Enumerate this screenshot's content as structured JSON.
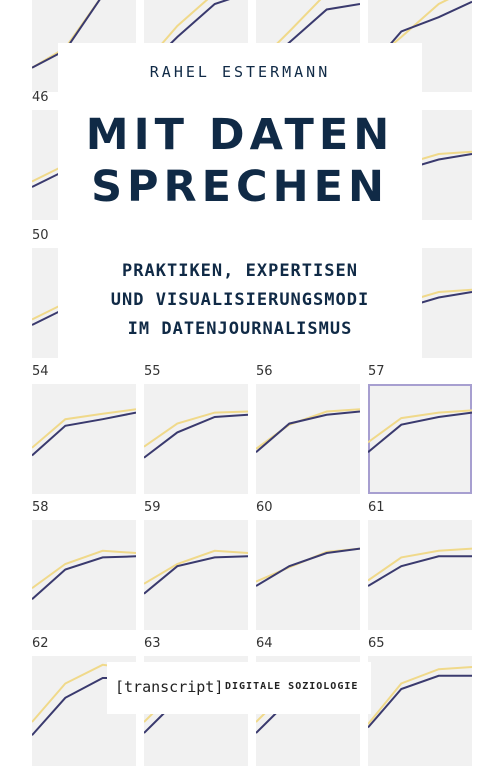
{
  "book": {
    "author": "RAHEL ESTERMANN",
    "title_line1": "MIT DATEN",
    "title_line2": "SPRECHEN",
    "subtitle_line1": "PRAKTIKEN, EXPERTISEN",
    "subtitle_line2": "UND VISUALISIERUNGSMODI",
    "subtitle_line3": "IM DATENJOURNALISMUS",
    "publisher": "[transcript]",
    "series": "DIGITALE SOZIOLOGIE"
  },
  "colors": {
    "panel_bg": "#f1f1f1",
    "line_dark": "#3a3a6e",
    "line_yellow": "#f0d98a",
    "highlight": "#a79fd0",
    "text": "#102a46"
  },
  "panels": [
    {
      "label": "",
      "dark": [
        0.22,
        0.38,
        0.88,
        0.91
      ],
      "yellow": [
        0.22,
        0.4,
        0.88,
        0.93
      ]
    },
    {
      "label": "",
      "dark": [
        0.2,
        0.5,
        0.8,
        0.9
      ],
      "yellow": [
        0.25,
        0.6,
        0.9,
        0.95
      ]
    },
    {
      "label": "",
      "dark": [
        0.2,
        0.45,
        0.75,
        0.8
      ],
      "yellow": [
        0.25,
        0.55,
        0.9,
        0.92
      ]
    },
    {
      "label": "",
      "dark": [
        0.2,
        0.55,
        0.68,
        0.82
      ],
      "yellow": [
        0.25,
        0.5,
        0.8,
        0.95
      ]
    },
    {
      "label": "46",
      "dark": [
        0.3,
        0.45,
        0.55,
        0.6
      ],
      "yellow": [
        0.35,
        0.5,
        0.6,
        0.62
      ]
    },
    {
      "label": "",
      "dark": [
        0.3,
        0.45,
        0.55,
        0.6
      ],
      "yellow": [
        0.35,
        0.5,
        0.6,
        0.62
      ]
    },
    {
      "label": "",
      "dark": [
        0.3,
        0.45,
        0.55,
        0.6
      ],
      "yellow": [
        0.35,
        0.5,
        0.6,
        0.62
      ]
    },
    {
      "label": "",
      "dark": [
        0.3,
        0.45,
        0.55,
        0.6
      ],
      "yellow": [
        0.35,
        0.5,
        0.6,
        0.62
      ]
    },
    {
      "label": "50",
      "dark": [
        0.3,
        0.45,
        0.55,
        0.6
      ],
      "yellow": [
        0.35,
        0.5,
        0.6,
        0.62
      ]
    },
    {
      "label": "",
      "dark": [
        0.3,
        0.45,
        0.55,
        0.6
      ],
      "yellow": [
        0.35,
        0.5,
        0.6,
        0.62
      ]
    },
    {
      "label": "",
      "dark": [
        0.3,
        0.45,
        0.55,
        0.6
      ],
      "yellow": [
        0.35,
        0.5,
        0.6,
        0.62
      ]
    },
    {
      "label": "",
      "dark": [
        0.3,
        0.45,
        0.55,
        0.6
      ],
      "yellow": [
        0.35,
        0.5,
        0.6,
        0.62
      ]
    },
    {
      "label": "54",
      "dark": [
        0.35,
        0.62,
        0.68,
        0.74
      ],
      "yellow": [
        0.42,
        0.68,
        0.73,
        0.77
      ]
    },
    {
      "label": "55",
      "dark": [
        0.33,
        0.56,
        0.7,
        0.72
      ],
      "yellow": [
        0.43,
        0.64,
        0.74,
        0.75
      ]
    },
    {
      "label": "56",
      "dark": [
        0.38,
        0.64,
        0.72,
        0.75
      ],
      "yellow": [
        0.41,
        0.63,
        0.75,
        0.77
      ]
    },
    {
      "label": "57",
      "dark": [
        0.38,
        0.63,
        0.7,
        0.74
      ],
      "yellow": [
        0.47,
        0.69,
        0.74,
        0.76
      ]
    },
    {
      "label": "58",
      "dark": [
        0.28,
        0.55,
        0.66,
        0.67
      ],
      "yellow": [
        0.38,
        0.6,
        0.72,
        0.7
      ]
    },
    {
      "label": "59",
      "dark": [
        0.33,
        0.58,
        0.66,
        0.67
      ],
      "yellow": [
        0.42,
        0.6,
        0.72,
        0.7
      ]
    },
    {
      "label": "60",
      "dark": [
        0.4,
        0.58,
        0.7,
        0.74
      ],
      "yellow": [
        0.44,
        0.57,
        0.71,
        0.74
      ]
    },
    {
      "label": "61",
      "dark": [
        0.4,
        0.58,
        0.67,
        0.67
      ],
      "yellow": [
        0.45,
        0.66,
        0.72,
        0.74
      ]
    },
    {
      "label": "62",
      "dark": [
        0.28,
        0.62,
        0.8,
        0.8
      ],
      "yellow": [
        0.4,
        0.75,
        0.92,
        0.88
      ]
    },
    {
      "label": "63",
      "dark": [
        0.3,
        0.6,
        0.78,
        0.8
      ],
      "yellow": [
        0.4,
        0.7,
        0.85,
        0.82
      ]
    },
    {
      "label": "64",
      "dark": [
        0.3,
        0.6,
        0.78,
        0.8
      ],
      "yellow": [
        0.4,
        0.7,
        0.85,
        0.82
      ]
    },
    {
      "label": "65",
      "dark": [
        0.35,
        0.7,
        0.82,
        0.82
      ],
      "yellow": [
        0.38,
        0.75,
        0.88,
        0.9
      ]
    }
  ],
  "highlighted_panel": "57"
}
